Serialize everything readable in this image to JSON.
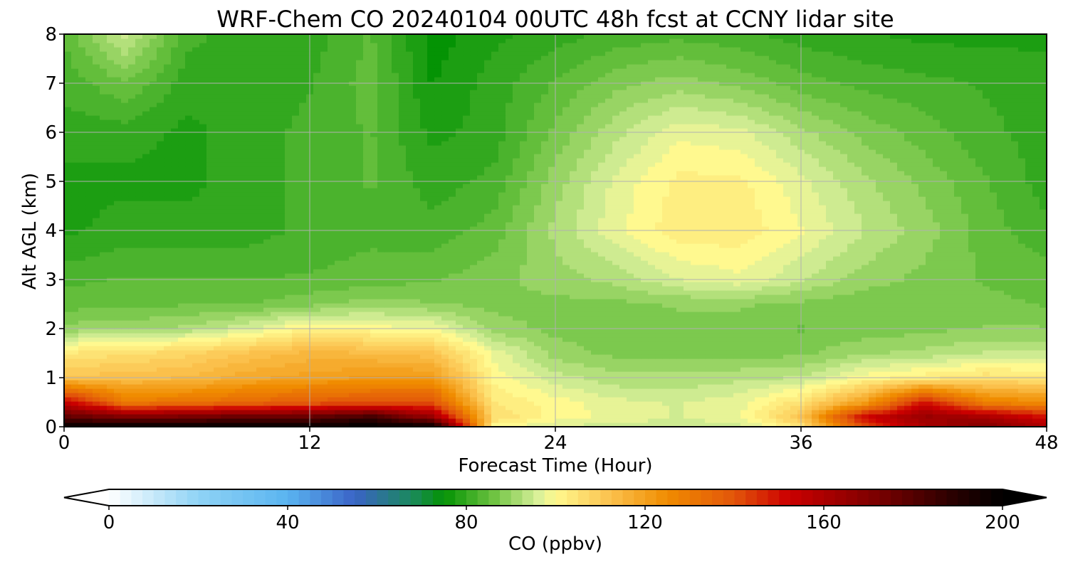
{
  "chart_data": {
    "type": "heatmap",
    "title": "WRF-Chem CO  20240104 00UTC 48h fcst at CCNY lidar site",
    "xlabel": "Forecast Time (Hour)",
    "ylabel": "Alt AGL (km)",
    "xlim": [
      0,
      48
    ],
    "ylim": [
      0,
      8
    ],
    "xticks": [
      0,
      12,
      24,
      36,
      48
    ],
    "yticks": [
      0,
      1,
      2,
      3,
      4,
      5,
      6,
      7,
      8
    ],
    "grid": true,
    "x": [
      0,
      3,
      6,
      9,
      12,
      15,
      18,
      21,
      24,
      27,
      30,
      33,
      36,
      39,
      42,
      45,
      48
    ],
    "y": [
      0,
      0.2,
      0.5,
      1,
      1.5,
      2,
      2.5,
      3,
      4,
      5,
      6,
      7,
      8
    ],
    "z": [
      [
        200,
        200,
        200,
        200,
        200,
        200,
        200,
        100,
        96,
        95,
        95,
        95,
        104,
        140,
        160,
        170,
        160
      ],
      [
        178,
        172,
        174,
        178,
        178,
        185,
        165,
        106,
        100,
        98,
        96,
        98,
        112,
        152,
        165,
        162,
        150
      ],
      [
        155,
        130,
        132,
        135,
        138,
        140,
        140,
        104,
        100,
        97,
        96,
        98,
        105,
        120,
        150,
        128,
        125
      ],
      [
        112,
        113,
        114,
        118,
        120,
        122,
        122,
        100,
        95,
        92,
        92,
        93,
        94,
        100,
        103,
        106,
        104
      ],
      [
        104,
        106,
        108,
        112,
        115,
        114,
        112,
        98,
        90,
        88,
        88,
        88,
        88,
        91,
        92,
        94,
        94
      ],
      [
        90,
        90,
        92,
        96,
        102,
        100,
        99,
        90,
        88,
        88,
        88,
        88,
        86,
        87,
        88,
        89,
        89
      ],
      [
        85,
        86,
        86,
        86,
        88,
        90,
        89,
        88,
        88,
        88,
        89,
        89,
        88,
        87,
        87,
        87,
        86
      ],
      [
        83,
        84,
        84,
        84,
        84,
        85,
        86,
        88,
        90,
        92,
        96,
        98,
        94,
        90,
        88,
        86,
        85
      ],
      [
        78,
        80,
        80,
        80,
        82,
        83,
        82,
        85,
        92,
        98,
        103,
        103,
        99,
        94,
        90,
        85,
        82
      ],
      [
        78,
        78,
        78,
        80,
        82,
        84,
        80,
        82,
        90,
        97,
        102,
        102,
        97,
        92,
        88,
        84,
        80
      ],
      [
        80,
        80,
        78,
        80,
        82,
        84,
        78,
        80,
        87,
        93,
        98,
        97,
        92,
        88,
        85,
        82,
        80
      ],
      [
        82,
        86,
        80,
        80,
        81,
        85,
        76,
        80,
        84,
        88,
        90,
        88,
        85,
        83,
        82,
        81,
        80
      ],
      [
        84,
        95,
        82,
        80,
        80,
        84,
        75,
        78,
        80,
        82,
        83,
        82,
        80,
        79,
        78,
        78,
        78
      ]
    ],
    "colorbar": {
      "label": "CO  (ppbv)",
      "min": 0,
      "max": 200,
      "ticks": [
        0,
        40,
        80,
        120,
        160,
        200
      ],
      "extend": "both",
      "stops": [
        {
          "value": 0,
          "color": "#ffffff"
        },
        {
          "value": 20,
          "color": "#8fd3f5"
        },
        {
          "value": 40,
          "color": "#5ab4f0"
        },
        {
          "value": 55,
          "color": "#3a63c6"
        },
        {
          "value": 68,
          "color": "#1a8a5a"
        },
        {
          "value": 75,
          "color": "#049304"
        },
        {
          "value": 86,
          "color": "#6cc240"
        },
        {
          "value": 96,
          "color": "#d9f09a"
        },
        {
          "value": 100,
          "color": "#fff98f"
        },
        {
          "value": 112,
          "color": "#fbc24e"
        },
        {
          "value": 125,
          "color": "#f08c00"
        },
        {
          "value": 140,
          "color": "#e2550a"
        },
        {
          "value": 152,
          "color": "#cc0000"
        },
        {
          "value": 172,
          "color": "#7a0000"
        },
        {
          "value": 190,
          "color": "#240000"
        },
        {
          "value": 200,
          "color": "#000000"
        }
      ]
    }
  }
}
